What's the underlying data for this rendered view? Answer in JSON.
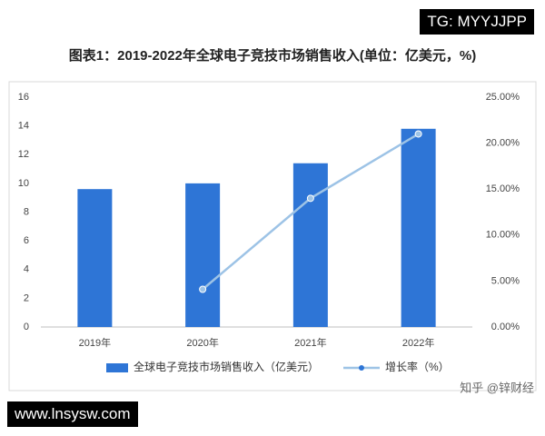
{
  "chart_data": {
    "type": "bar",
    "title": "图表1：2019-2022年全球电子竞技市场销售收入(单位：亿美元，%)",
    "tag": "TG: MYYJJPP",
    "website": "www.lnsysw.com",
    "watermark": "知乎 @锌财经",
    "categories": [
      "2019年",
      "2020年",
      "2021年",
      "2022年"
    ],
    "series": [
      {
        "name": "全球电子竞技市场销售收入（亿美元）",
        "type": "bar",
        "color": "#2e75d6",
        "values": [
          9.6,
          10,
          11.4,
          13.8
        ]
      },
      {
        "name": "增长率（%）",
        "type": "line",
        "axis": "y2",
        "color": "#9dc3e6",
        "values": [
          null,
          4.1,
          14,
          21
        ]
      }
    ],
    "ylim": [
      0,
      16
    ],
    "yticks": [
      0,
      2,
      4,
      6,
      8,
      10,
      12,
      14,
      16
    ],
    "y2lim": [
      0,
      25
    ],
    "y2ticks": [
      {
        "value": 0,
        "label": "0.00%"
      },
      {
        "value": 5,
        "label": "5.00%"
      },
      {
        "value": 10,
        "label": "10.00%"
      },
      {
        "value": 15,
        "label": "15.00%"
      },
      {
        "value": 20,
        "label": "20.00%"
      },
      {
        "value": 25,
        "label": "25.00%"
      }
    ]
  }
}
